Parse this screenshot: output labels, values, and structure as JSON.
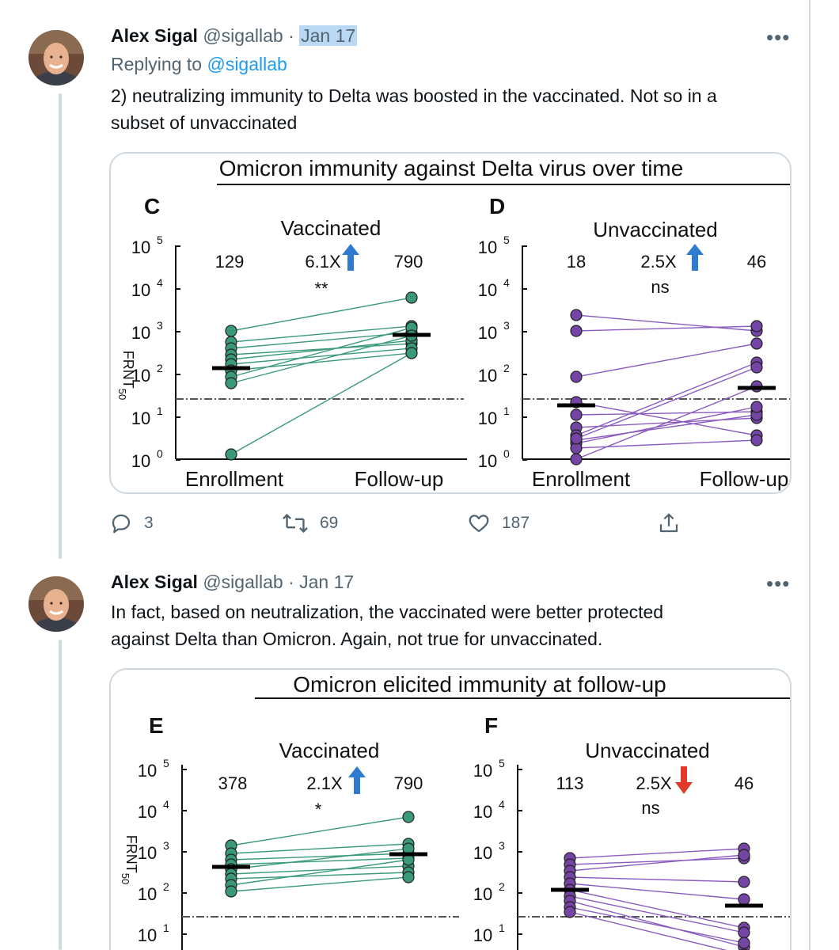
{
  "tweets": [
    {
      "name": "Alex Sigal",
      "handle": "@sigallab",
      "separator": "·",
      "date": "Jan 17",
      "replying_prefix": "Replying to",
      "replying_to": "@sigallab",
      "text_line1": "2) neutralizing immunity to Delta was boosted in the vaccinated. Not so in a",
      "text_line2": "subset of unvaccinated",
      "more_icon": "•••",
      "actions": {
        "replies": "3",
        "retweets": "69",
        "likes": "187"
      }
    },
    {
      "name": "Alex Sigal",
      "handle": "@sigallab",
      "separator": "·",
      "date": "Jan 17",
      "text_line1": "In fact, based on neutralization, the vaccinated were better protected",
      "text_line2": "against Delta than Omicron. Again, not true for unvaccinated.",
      "more_icon": "•••"
    }
  ],
  "figure1": {
    "title": "Omicron immunity against Delta virus over time",
    "ylabel": "FRNT",
    "ylabel_sub": "50",
    "left": {
      "letter": "C",
      "group": "Vaccinated",
      "n1": "129",
      "fold": "6.1X",
      "n2": "790",
      "sig": "**",
      "x1": "Enrollment",
      "x2": "Follow-up",
      "arrow": "up"
    },
    "right": {
      "letter": "D",
      "group": "Unvaccinated",
      "n1": "18",
      "fold": "2.5X",
      "n2": "46",
      "sig": "ns",
      "x1": "Enrollment",
      "x2": "Follow-up",
      "arrow": "up"
    },
    "yticks": [
      "10",
      "10",
      "10",
      "10",
      "10",
      "10"
    ],
    "yexp": [
      "5",
      "4",
      "3",
      "2",
      "1",
      "0"
    ]
  },
  "figure2": {
    "title": "Omicron elicited immunity at follow-up",
    "ylabel": "FRNT",
    "ylabel_sub": "50",
    "left": {
      "letter": "E",
      "group": "Vaccinated",
      "n1": "378",
      "fold": "2.1X",
      "n2": "790",
      "sig": "*",
      "arrow": "up"
    },
    "right": {
      "letter": "F",
      "group": "Unvaccinated",
      "n1": "113",
      "fold": "2.5X",
      "n2": "46",
      "sig": "ns",
      "arrow": "down"
    },
    "yticks": [
      "10",
      "10",
      "10",
      "10",
      "10"
    ],
    "yexp": [
      "5",
      "4",
      "3",
      "2",
      "1"
    ]
  },
  "colors": {
    "vaccinated_fill": "#3a9a77",
    "unvaccinated_fill": "#7445a5",
    "up_arrow": "#2e7bd0",
    "down_arrow": "#e03a2a",
    "link": "#1d9bf0"
  }
}
